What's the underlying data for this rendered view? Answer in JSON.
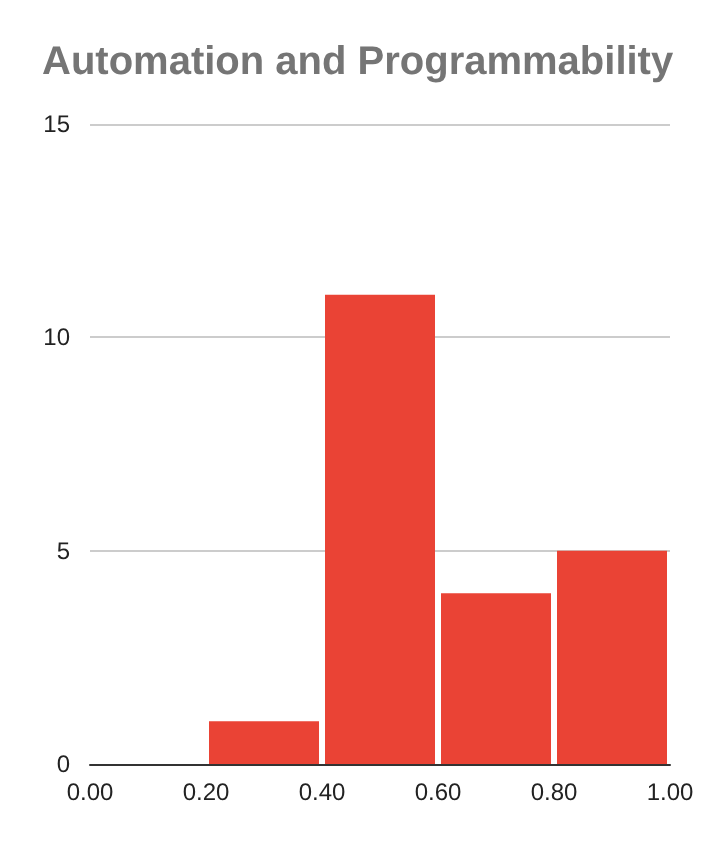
{
  "chart_data": {
    "type": "histogram",
    "title": "Automation and Programmability",
    "bins": [
      0,
      0.2,
      0.4,
      0.6,
      0.8,
      1.0
    ],
    "values": [
      0,
      1,
      11,
      4,
      5
    ],
    "color": "#ea4335",
    "xlim": [
      0,
      1.0
    ],
    "xticks": [
      {
        "value": 0,
        "label": "0.00"
      },
      {
        "value": 0.2,
        "label": "0.20"
      },
      {
        "value": 0.4,
        "label": "0.40"
      },
      {
        "value": 0.6,
        "label": "0.60"
      },
      {
        "value": 0.8,
        "label": "0.80"
      },
      {
        "value": 1.0,
        "label": "1.00"
      }
    ],
    "ylim": [
      0,
      15
    ],
    "yticks": [
      0,
      5,
      10,
      15
    ],
    "grid": "y"
  }
}
